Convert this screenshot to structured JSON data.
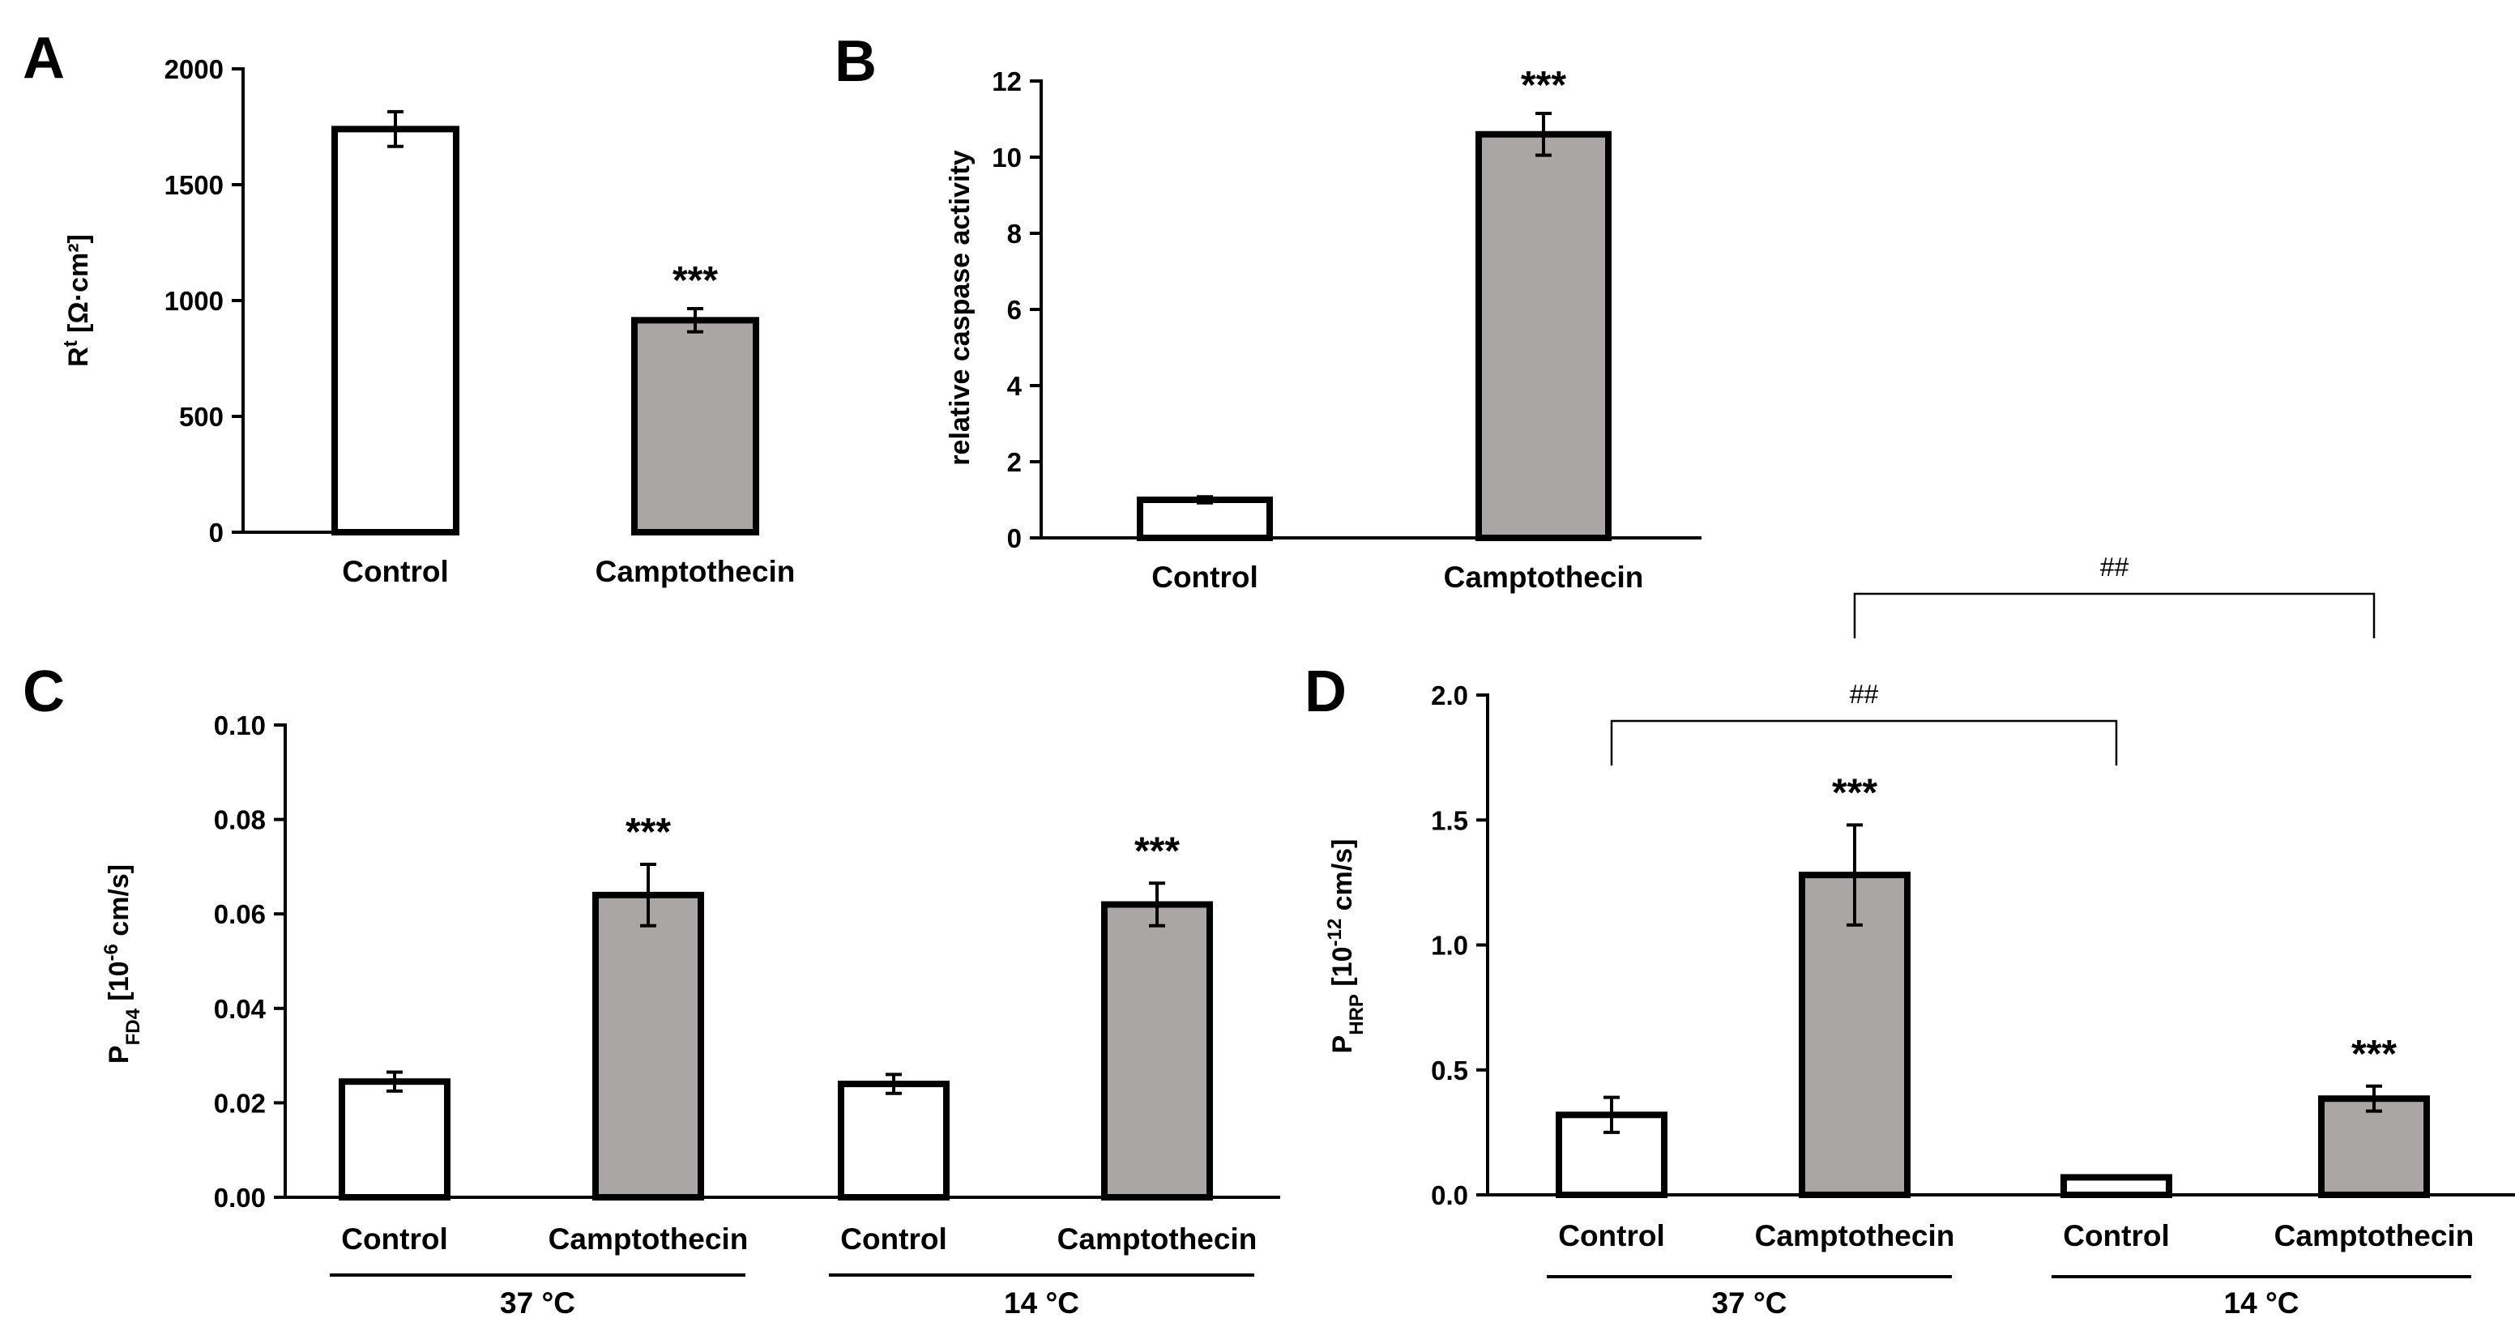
{
  "chart_data": [
    {
      "panel": "A",
      "type": "bar",
      "ylabel": "Rt [Ω·cm²]",
      "ylabel_main": "R",
      "ylabel_sup": "t",
      "ylabel_rest": " [Ω·cm²]",
      "ylim": [
        0,
        2000
      ],
      "ticks": [
        0,
        500,
        1000,
        1500,
        2000
      ],
      "tick_labels": [
        "0",
        "500",
        "1000",
        "1500",
        "2000"
      ],
      "categories": [
        "Control",
        "Camptothecin"
      ],
      "values": [
        1740,
        915
      ],
      "errors": [
        75,
        50
      ],
      "fill": [
        "#ffffff",
        "#aaa6a5"
      ],
      "annotations": [
        "",
        "***"
      ]
    },
    {
      "panel": "B",
      "type": "bar",
      "ylabel": "relative caspase activity",
      "ylim": [
        0,
        12
      ],
      "ticks": [
        0,
        2,
        4,
        6,
        8,
        10,
        12
      ],
      "tick_labels": [
        "0",
        "2",
        "4",
        "6",
        "8",
        "10",
        "12"
      ],
      "categories": [
        "Control",
        "Camptothecin"
      ],
      "values": [
        1.0,
        10.6
      ],
      "errors": [
        0.08,
        0.55
      ],
      "fill": [
        "#ffffff",
        "#aaa6a5"
      ],
      "annotations": [
        "",
        "***"
      ]
    },
    {
      "panel": "C",
      "type": "bar",
      "ylabel": "PFD4 [10-6 cm/s]",
      "ylabel_main": "P",
      "ylabel_sub": "FD4",
      "ylabel_mid": " [10",
      "ylabel_sup": "-6",
      "ylabel_rest": " cm/s]",
      "ylim": [
        0,
        0.1
      ],
      "ticks": [
        0,
        0.02,
        0.04,
        0.06,
        0.08,
        0.1
      ],
      "tick_labels": [
        "0.00",
        "0.02",
        "0.04",
        "0.06",
        "0.08",
        "0.10"
      ],
      "categories": [
        "Control",
        "Camptothecin",
        "Control",
        "Camptothecin"
      ],
      "values": [
        0.0245,
        0.064,
        0.024,
        0.062
      ],
      "errors": [
        0.002,
        0.0065,
        0.002,
        0.0045
      ],
      "fill": [
        "#ffffff",
        "#aaa6a5",
        "#ffffff",
        "#aaa6a5"
      ],
      "annotations": [
        "",
        "***",
        "",
        "***"
      ],
      "groups": [
        {
          "label": "37 °C",
          "from": 0,
          "to": 1
        },
        {
          "label": "14 °C",
          "from": 2,
          "to": 3
        }
      ]
    },
    {
      "panel": "D",
      "type": "bar",
      "ylabel": "PHRP [10-12 cm/s]",
      "ylabel_main": "P",
      "ylabel_sub": "HRP",
      "ylabel_mid": " [10",
      "ylabel_sup": "-12",
      "ylabel_rest": " cm/s]",
      "ylim": [
        0,
        2.0
      ],
      "ticks": [
        0,
        0.5,
        1.0,
        1.5,
        2.0
      ],
      "tick_labels": [
        "0.0",
        "0.5",
        "1.0",
        "1.5",
        "2.0"
      ],
      "categories": [
        "Control",
        "Camptothecin",
        "Control",
        "Camptothecin"
      ],
      "values": [
        0.32,
        1.28,
        0.07,
        0.385
      ],
      "errors": [
        0.07,
        0.2,
        0.005,
        0.05
      ],
      "fill": [
        "#ffffff",
        "#aaa6a5",
        "#ffffff",
        "#aaa6a5"
      ],
      "annotations": [
        "",
        "***",
        "",
        "***"
      ],
      "groups": [
        {
          "label": "37 °C",
          "from": 0,
          "to": 1
        },
        {
          "label": "14 °C",
          "from": 2,
          "to": 3
        }
      ],
      "brackets": [
        {
          "from": 0,
          "to": 2,
          "label": "##"
        },
        {
          "from": 1,
          "to": 3,
          "label": "##"
        }
      ]
    }
  ]
}
